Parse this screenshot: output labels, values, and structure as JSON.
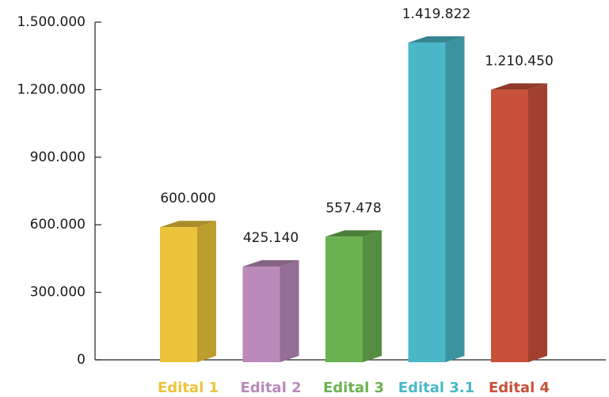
{
  "chart_data": {
    "type": "bar3d",
    "categories": [
      "Edital 1",
      "Edital 2",
      "Edital 3",
      "Edital 3.1",
      "Edital 4"
    ],
    "values": [
      600000,
      425140,
      557478,
      1419822,
      1210450
    ],
    "value_labels": [
      "600.000",
      "425.140",
      "557.478",
      "1.419.822",
      "1.210.450"
    ],
    "colors": [
      "#ecc43a",
      "#b98aba",
      "#6ab150",
      "#4ab8c8",
      "#c9503a"
    ],
    "ylim": [
      0,
      1500000
    ],
    "yticks": [
      0,
      {
        "value": 300000,
        "label": "300.000"
      },
      {
        "value": 600000,
        "label": "600.000"
      },
      {
        "value": 900000,
        "label": "900.000"
      },
      {
        "value": 1200000,
        "label": "1.200.000"
      },
      {
        "value": 1500000,
        "label": "1.500.000"
      }
    ],
    "grid": false
  }
}
